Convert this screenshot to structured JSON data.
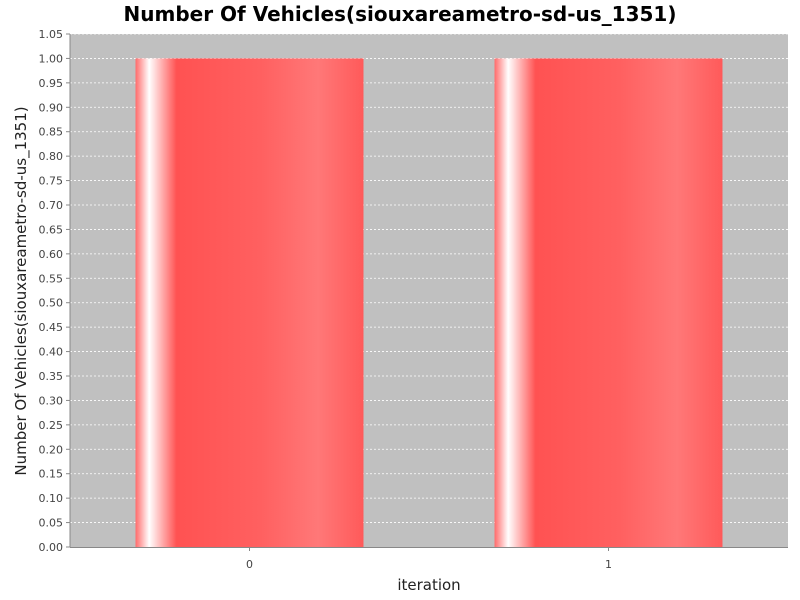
{
  "chart_data": {
    "type": "bar",
    "title": "Number Of Vehicles(siouxareametro-sd-us_1351)",
    "xlabel": "iteration",
    "ylabel": "Number Of Vehicles(siouxareametro-sd-us_1351)",
    "categories": [
      "0",
      "1"
    ],
    "values": [
      1.0,
      1.0
    ],
    "ylim": [
      0,
      1.05
    ],
    "yticks": [
      "0.00",
      "0.05",
      "0.10",
      "0.15",
      "0.20",
      "0.25",
      "0.30",
      "0.35",
      "0.40",
      "0.45",
      "0.50",
      "0.55",
      "0.60",
      "0.65",
      "0.70",
      "0.75",
      "0.80",
      "0.85",
      "0.90",
      "0.95",
      "1.00",
      "1.05"
    ],
    "grid": true,
    "legend": "none",
    "colors": {
      "plot_background": "#c0c0c0",
      "bar": "#ff5555",
      "bar_highlight": "#ffffff",
      "gridline": "#ffffff"
    }
  }
}
